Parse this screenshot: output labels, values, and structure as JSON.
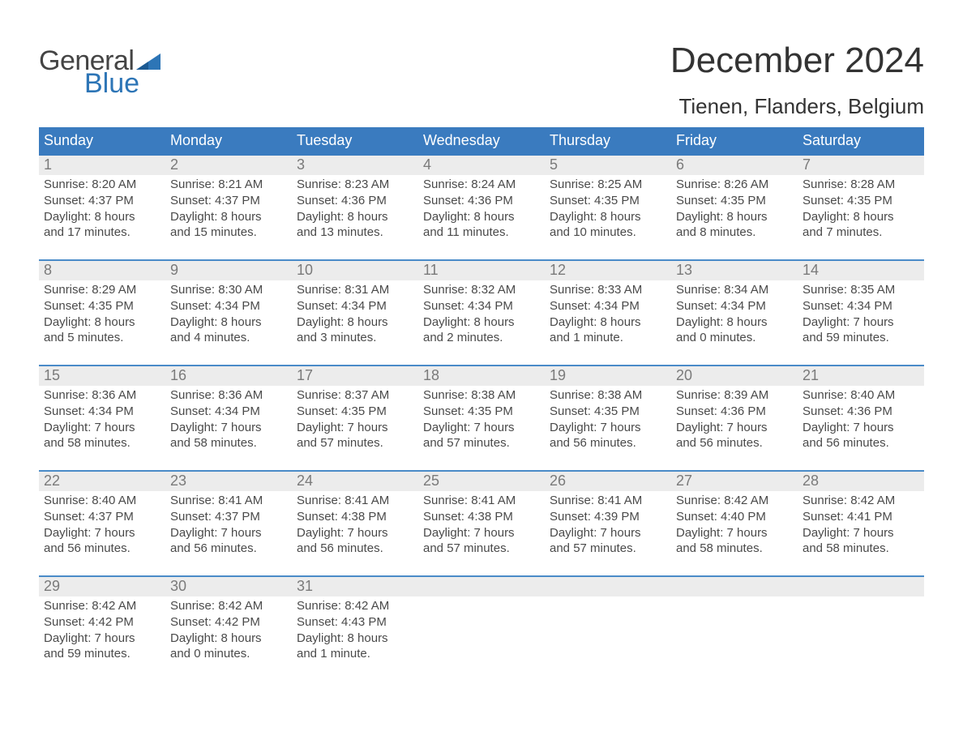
{
  "brand": {
    "word1": "General",
    "word2": "Blue"
  },
  "title": "December 2024",
  "location": "Tienen, Flanders, Belgium",
  "colors": {
    "brand_blue": "#2d75b6",
    "header_blue": "#3a7bbf",
    "row_sep_blue": "#4a8bc8",
    "gray_band": "#ececec",
    "text_gray": "#4a4a4a",
    "background": "#ffffff"
  },
  "typography": {
    "title_fontsize": 44,
    "location_fontsize": 26,
    "weekday_fontsize": 18,
    "daynum_fontsize": 18,
    "cell_fontsize": 15,
    "logo_fontsize": 34
  },
  "weekdays": [
    "Sunday",
    "Monday",
    "Tuesday",
    "Wednesday",
    "Thursday",
    "Friday",
    "Saturday"
  ],
  "weeks": [
    [
      {
        "day": "1",
        "sunrise": "Sunrise: 8:20 AM",
        "sunset": "Sunset: 4:37 PM",
        "dl1": "Daylight: 8 hours",
        "dl2": "and 17 minutes."
      },
      {
        "day": "2",
        "sunrise": "Sunrise: 8:21 AM",
        "sunset": "Sunset: 4:37 PM",
        "dl1": "Daylight: 8 hours",
        "dl2": "and 15 minutes."
      },
      {
        "day": "3",
        "sunrise": "Sunrise: 8:23 AM",
        "sunset": "Sunset: 4:36 PM",
        "dl1": "Daylight: 8 hours",
        "dl2": "and 13 minutes."
      },
      {
        "day": "4",
        "sunrise": "Sunrise: 8:24 AM",
        "sunset": "Sunset: 4:36 PM",
        "dl1": "Daylight: 8 hours",
        "dl2": "and 11 minutes."
      },
      {
        "day": "5",
        "sunrise": "Sunrise: 8:25 AM",
        "sunset": "Sunset: 4:35 PM",
        "dl1": "Daylight: 8 hours",
        "dl2": "and 10 minutes."
      },
      {
        "day": "6",
        "sunrise": "Sunrise: 8:26 AM",
        "sunset": "Sunset: 4:35 PM",
        "dl1": "Daylight: 8 hours",
        "dl2": "and 8 minutes."
      },
      {
        "day": "7",
        "sunrise": "Sunrise: 8:28 AM",
        "sunset": "Sunset: 4:35 PM",
        "dl1": "Daylight: 8 hours",
        "dl2": "and 7 minutes."
      }
    ],
    [
      {
        "day": "8",
        "sunrise": "Sunrise: 8:29 AM",
        "sunset": "Sunset: 4:35 PM",
        "dl1": "Daylight: 8 hours",
        "dl2": "and 5 minutes."
      },
      {
        "day": "9",
        "sunrise": "Sunrise: 8:30 AM",
        "sunset": "Sunset: 4:34 PM",
        "dl1": "Daylight: 8 hours",
        "dl2": "and 4 minutes."
      },
      {
        "day": "10",
        "sunrise": "Sunrise: 8:31 AM",
        "sunset": "Sunset: 4:34 PM",
        "dl1": "Daylight: 8 hours",
        "dl2": "and 3 minutes."
      },
      {
        "day": "11",
        "sunrise": "Sunrise: 8:32 AM",
        "sunset": "Sunset: 4:34 PM",
        "dl1": "Daylight: 8 hours",
        "dl2": "and 2 minutes."
      },
      {
        "day": "12",
        "sunrise": "Sunrise: 8:33 AM",
        "sunset": "Sunset: 4:34 PM",
        "dl1": "Daylight: 8 hours",
        "dl2": "and 1 minute."
      },
      {
        "day": "13",
        "sunrise": "Sunrise: 8:34 AM",
        "sunset": "Sunset: 4:34 PM",
        "dl1": "Daylight: 8 hours",
        "dl2": "and 0 minutes."
      },
      {
        "day": "14",
        "sunrise": "Sunrise: 8:35 AM",
        "sunset": "Sunset: 4:34 PM",
        "dl1": "Daylight: 7 hours",
        "dl2": "and 59 minutes."
      }
    ],
    [
      {
        "day": "15",
        "sunrise": "Sunrise: 8:36 AM",
        "sunset": "Sunset: 4:34 PM",
        "dl1": "Daylight: 7 hours",
        "dl2": "and 58 minutes."
      },
      {
        "day": "16",
        "sunrise": "Sunrise: 8:36 AM",
        "sunset": "Sunset: 4:34 PM",
        "dl1": "Daylight: 7 hours",
        "dl2": "and 58 minutes."
      },
      {
        "day": "17",
        "sunrise": "Sunrise: 8:37 AM",
        "sunset": "Sunset: 4:35 PM",
        "dl1": "Daylight: 7 hours",
        "dl2": "and 57 minutes."
      },
      {
        "day": "18",
        "sunrise": "Sunrise: 8:38 AM",
        "sunset": "Sunset: 4:35 PM",
        "dl1": "Daylight: 7 hours",
        "dl2": "and 57 minutes."
      },
      {
        "day": "19",
        "sunrise": "Sunrise: 8:38 AM",
        "sunset": "Sunset: 4:35 PM",
        "dl1": "Daylight: 7 hours",
        "dl2": "and 56 minutes."
      },
      {
        "day": "20",
        "sunrise": "Sunrise: 8:39 AM",
        "sunset": "Sunset: 4:36 PM",
        "dl1": "Daylight: 7 hours",
        "dl2": "and 56 minutes."
      },
      {
        "day": "21",
        "sunrise": "Sunrise: 8:40 AM",
        "sunset": "Sunset: 4:36 PM",
        "dl1": "Daylight: 7 hours",
        "dl2": "and 56 minutes."
      }
    ],
    [
      {
        "day": "22",
        "sunrise": "Sunrise: 8:40 AM",
        "sunset": "Sunset: 4:37 PM",
        "dl1": "Daylight: 7 hours",
        "dl2": "and 56 minutes."
      },
      {
        "day": "23",
        "sunrise": "Sunrise: 8:41 AM",
        "sunset": "Sunset: 4:37 PM",
        "dl1": "Daylight: 7 hours",
        "dl2": "and 56 minutes."
      },
      {
        "day": "24",
        "sunrise": "Sunrise: 8:41 AM",
        "sunset": "Sunset: 4:38 PM",
        "dl1": "Daylight: 7 hours",
        "dl2": "and 56 minutes."
      },
      {
        "day": "25",
        "sunrise": "Sunrise: 8:41 AM",
        "sunset": "Sunset: 4:38 PM",
        "dl1": "Daylight: 7 hours",
        "dl2": "and 57 minutes."
      },
      {
        "day": "26",
        "sunrise": "Sunrise: 8:41 AM",
        "sunset": "Sunset: 4:39 PM",
        "dl1": "Daylight: 7 hours",
        "dl2": "and 57 minutes."
      },
      {
        "day": "27",
        "sunrise": "Sunrise: 8:42 AM",
        "sunset": "Sunset: 4:40 PM",
        "dl1": "Daylight: 7 hours",
        "dl2": "and 58 minutes."
      },
      {
        "day": "28",
        "sunrise": "Sunrise: 8:42 AM",
        "sunset": "Sunset: 4:41 PM",
        "dl1": "Daylight: 7 hours",
        "dl2": "and 58 minutes."
      }
    ],
    [
      {
        "day": "29",
        "sunrise": "Sunrise: 8:42 AM",
        "sunset": "Sunset: 4:42 PM",
        "dl1": "Daylight: 7 hours",
        "dl2": "and 59 minutes."
      },
      {
        "day": "30",
        "sunrise": "Sunrise: 8:42 AM",
        "sunset": "Sunset: 4:42 PM",
        "dl1": "Daylight: 8 hours",
        "dl2": "and 0 minutes."
      },
      {
        "day": "31",
        "sunrise": "Sunrise: 8:42 AM",
        "sunset": "Sunset: 4:43 PM",
        "dl1": "Daylight: 8 hours",
        "dl2": "and 1 minute."
      },
      null,
      null,
      null,
      null
    ]
  ]
}
